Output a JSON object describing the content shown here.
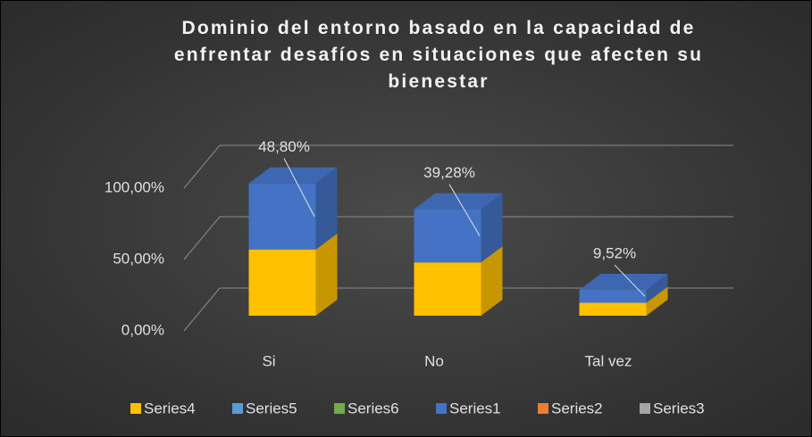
{
  "chart_data": {
    "type": "bar3d_stacked",
    "title": "Dominio del entorno basado en la capacidad de enfrentar desafíos en situaciones que afecten su bienestar",
    "categories": [
      "Si",
      "No",
      "Tal vez"
    ],
    "series": [
      {
        "name": "Series4",
        "color": "#ffc000",
        "values": [
          48.8,
          39.28,
          9.52
        ]
      },
      {
        "name": "Series5",
        "color": "#5b9bd5",
        "values": [
          null,
          null,
          null
        ]
      },
      {
        "name": "Series6",
        "color": "#70ad47",
        "values": [
          null,
          null,
          null
        ]
      },
      {
        "name": "Series1",
        "color": "#4472c4",
        "values": [
          48.8,
          39.28,
          9.52
        ],
        "value_labels": [
          "48,80%",
          "39,28%",
          "9,52%"
        ]
      },
      {
        "name": "Series2",
        "color": "#ed7d31",
        "values": [
          null,
          null,
          null
        ]
      },
      {
        "name": "Series3",
        "color": "#a5a5a5",
        "values": [
          null,
          null,
          null
        ]
      }
    ],
    "ylim": [
      0,
      100
    ],
    "yticks": [
      {
        "value": 0,
        "label": "0,00%"
      },
      {
        "value": 50,
        "label": "50,00%"
      },
      {
        "value": 100,
        "label": "100,00%"
      }
    ],
    "grid": true
  }
}
